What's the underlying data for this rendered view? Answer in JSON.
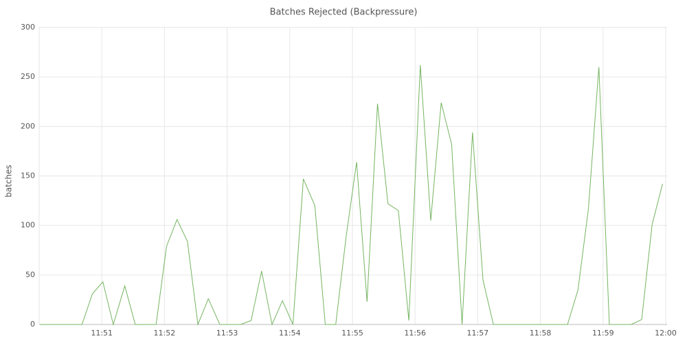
{
  "chart_data": {
    "type": "line",
    "title": "Batches Rejected (Backpressure)",
    "y_label": "batches",
    "x": [
      1,
      11,
      21,
      31,
      41,
      51,
      61,
      71,
      82,
      92,
      102,
      112,
      122,
      132,
      142,
      152,
      162,
      173,
      183,
      193,
      203,
      213,
      223,
      233,
      243,
      253,
      264,
      274,
      284,
      294,
      304,
      314,
      324,
      334,
      344,
      354,
      365,
      375,
      385,
      395,
      405,
      415,
      425,
      435,
      445,
      455,
      466,
      476,
      486,
      496,
      506,
      516,
      526,
      536,
      546,
      557,
      567,
      577,
      587,
      597
    ],
    "series": [
      {
        "name": "batches",
        "color": "#73b45f",
        "values": [
          0,
          0,
          0,
          0,
          0,
          31,
          43,
          0,
          39,
          0,
          0,
          0,
          79,
          106,
          84,
          0,
          26,
          0,
          0,
          0,
          4,
          54,
          0,
          24,
          0,
          147,
          120,
          0,
          0,
          89,
          164,
          23,
          223,
          122,
          115,
          4,
          262,
          105,
          224,
          182,
          0,
          194,
          45,
          0,
          0,
          0,
          0,
          0,
          0,
          0,
          0,
          35,
          117,
          260,
          0,
          0,
          0,
          5,
          101,
          142
        ]
      }
    ],
    "xlim": [
      0,
      600
    ],
    "xticks": [
      {
        "value": 60,
        "label": "11:51"
      },
      {
        "value": 120,
        "label": "11:52"
      },
      {
        "value": 180,
        "label": "11:53"
      },
      {
        "value": 240,
        "label": "11:54"
      },
      {
        "value": 300,
        "label": "11:55"
      },
      {
        "value": 360,
        "label": "11:56"
      },
      {
        "value": 420,
        "label": "11:57"
      },
      {
        "value": 480,
        "label": "11:58"
      },
      {
        "value": 540,
        "label": "11:59"
      },
      {
        "value": 600,
        "label": "12:00"
      }
    ],
    "ylim": [
      0,
      300
    ],
    "yticks": [
      0,
      50,
      100,
      150,
      200,
      250,
      300
    ],
    "grid": true
  }
}
